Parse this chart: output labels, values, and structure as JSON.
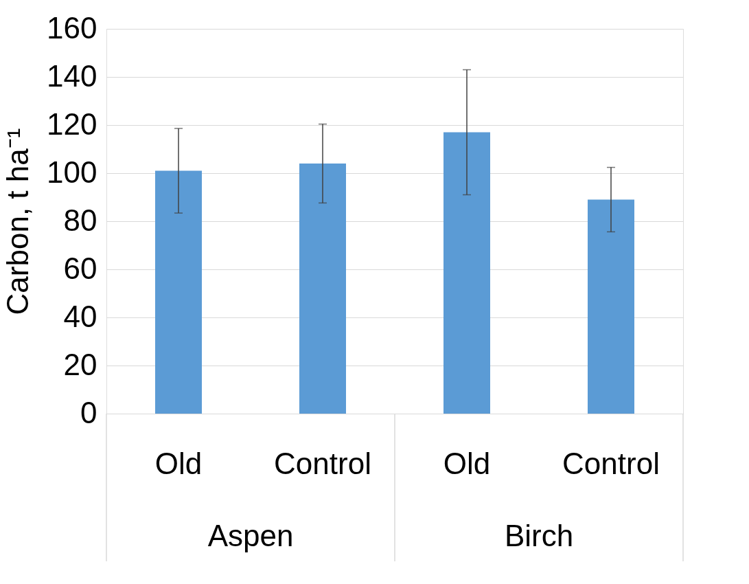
{
  "chart_data": {
    "type": "bar",
    "categories": [
      "Old",
      "Control",
      "Old",
      "Control"
    ],
    "values": [
      101,
      104,
      117,
      89
    ],
    "errors": [
      17.6,
      16.4,
      26,
      13.4
    ],
    "color": "#5b9bd5",
    "ylabel": "Carbon, t ha⁻¹",
    "ylim": [
      0,
      160
    ],
    "yticks": [
      0,
      20,
      40,
      60,
      80,
      100,
      120,
      140,
      160
    ],
    "grid": "y",
    "annotations": [
      "Aspen",
      "Birch"
    ]
  }
}
